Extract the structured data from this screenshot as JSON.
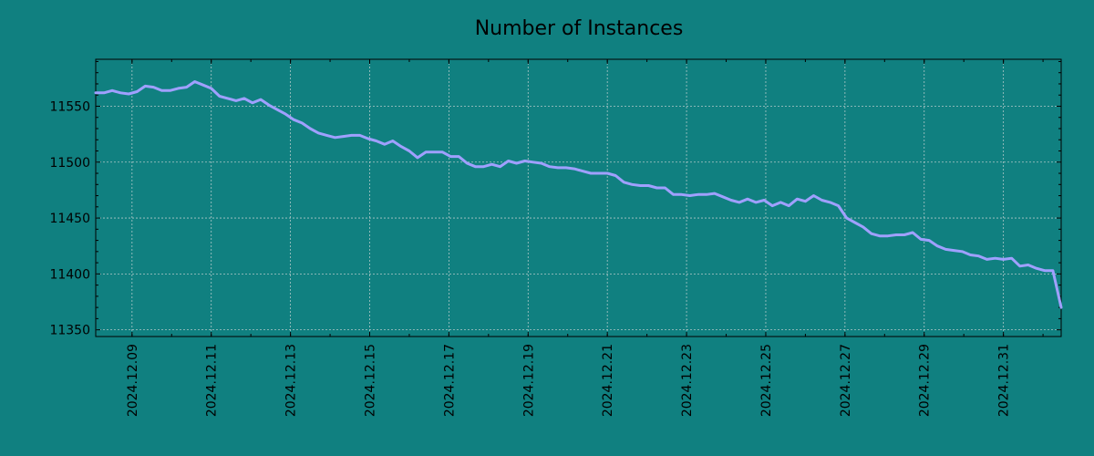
{
  "chart_data": {
    "type": "line",
    "title": "Number of Instances",
    "xlabel": "",
    "ylabel": "",
    "x_start": "2024.12.08",
    "x_end": "2025.01.01",
    "xlim": [
      "2024.12.08 02:00",
      "2025.01.01 11:00"
    ],
    "ylim": [
      11344,
      11592
    ],
    "grid": true,
    "x_ticks": [
      "2024.12.09",
      "2024.12.11",
      "2024.12.13",
      "2024.12.15",
      "2024.12.17",
      "2024.12.19",
      "2024.12.21",
      "2024.12.23",
      "2024.12.25",
      "2024.12.27",
      "2024.12.29",
      "2024.12.31"
    ],
    "y_ticks": [
      11350,
      11400,
      11450,
      11500,
      11550
    ],
    "series": [
      {
        "color": "#a0a0ff",
        "points": [
          [
            "2024.12.08 02:00",
            11562
          ],
          [
            "2024.12.08 07:00",
            11562
          ],
          [
            "2024.12.08 12:00",
            11564
          ],
          [
            "2024.12.08 17:00",
            11562
          ],
          [
            "2024.12.08 22:00",
            11561
          ],
          [
            "2024.12.09 03:00",
            11563
          ],
          [
            "2024.12.09 08:00",
            11568
          ],
          [
            "2024.12.09 13:00",
            11567
          ],
          [
            "2024.12.09 18:00",
            11564
          ],
          [
            "2024.12.09 23:00",
            11564
          ],
          [
            "2024.12.10 04:00",
            11566
          ],
          [
            "2024.12.10 09:00",
            11567
          ],
          [
            "2024.12.10 14:00",
            11572
          ],
          [
            "2024.12.10 19:00",
            11569
          ],
          [
            "2024.12.11 00:00",
            11566
          ],
          [
            "2024.12.11 05:00",
            11559
          ],
          [
            "2024.12.11 10:00",
            11557
          ],
          [
            "2024.12.11 15:00",
            11555
          ],
          [
            "2024.12.11 20:00",
            11557
          ],
          [
            "2024.12.12 01:00",
            11553
          ],
          [
            "2024.12.12 06:00",
            11556
          ],
          [
            "2024.12.12 11:00",
            11551
          ],
          [
            "2024.12.12 16:00",
            11547
          ],
          [
            "2024.12.12 21:00",
            11543
          ],
          [
            "2024.12.13 02:00",
            11538
          ],
          [
            "2024.12.13 07:00",
            11535
          ],
          [
            "2024.12.13 12:00",
            11530
          ],
          [
            "2024.12.13 17:00",
            11526
          ],
          [
            "2024.12.13 22:00",
            11524
          ],
          [
            "2024.12.14 03:00",
            11522
          ],
          [
            "2024.12.14 08:00",
            11523
          ],
          [
            "2024.12.14 13:00",
            11524
          ],
          [
            "2024.12.14 18:00",
            11524
          ],
          [
            "2024.12.14 23:00",
            11521
          ],
          [
            "2024.12.15 04:00",
            11519
          ],
          [
            "2024.12.15 09:00",
            11516
          ],
          [
            "2024.12.15 14:00",
            11519
          ],
          [
            "2024.12.15 19:00",
            11514
          ],
          [
            "2024.12.16 00:00",
            11510
          ],
          [
            "2024.12.16 05:00",
            11504
          ],
          [
            "2024.12.16 10:00",
            11509
          ],
          [
            "2024.12.16 15:00",
            11509
          ],
          [
            "2024.12.16 20:00",
            11509
          ],
          [
            "2024.12.17 01:00",
            11505
          ],
          [
            "2024.12.17 06:00",
            11505
          ],
          [
            "2024.12.17 11:00",
            11499
          ],
          [
            "2024.12.17 16:00",
            11496
          ],
          [
            "2024.12.17 21:00",
            11496
          ],
          [
            "2024.12.18 02:00",
            11498
          ],
          [
            "2024.12.18 07:00",
            11496
          ],
          [
            "2024.12.18 12:00",
            11501
          ],
          [
            "2024.12.18 17:00",
            11499
          ],
          [
            "2024.12.18 22:00",
            11501
          ],
          [
            "2024.12.19 03:00",
            11500
          ],
          [
            "2024.12.19 08:00",
            11499
          ],
          [
            "2024.12.19 13:00",
            11496
          ],
          [
            "2024.12.19 18:00",
            11495
          ],
          [
            "2024.12.19 23:00",
            11495
          ],
          [
            "2024.12.20 04:00",
            11494
          ],
          [
            "2024.12.20 09:00",
            11492
          ],
          [
            "2024.12.20 14:00",
            11490
          ],
          [
            "2024.12.20 19:00",
            11490
          ],
          [
            "2024.12.21 00:00",
            11490
          ],
          [
            "2024.12.21 05:00",
            11488
          ],
          [
            "2024.12.21 10:00",
            11482
          ],
          [
            "2024.12.21 15:00",
            11480
          ],
          [
            "2024.12.21 20:00",
            11479
          ],
          [
            "2024.12.22 01:00",
            11479
          ],
          [
            "2024.12.22 06:00",
            11477
          ],
          [
            "2024.12.22 11:00",
            11477
          ],
          [
            "2024.12.22 16:00",
            11471
          ],
          [
            "2024.12.22 21:00",
            11471
          ],
          [
            "2024.12.23 02:00",
            11470
          ],
          [
            "2024.12.23 07:00",
            11471
          ],
          [
            "2024.12.23 12:00",
            11471
          ],
          [
            "2024.12.23 17:00",
            11472
          ],
          [
            "2024.12.23 22:00",
            11469
          ],
          [
            "2024.12.24 03:00",
            11466
          ],
          [
            "2024.12.24 08:00",
            11464
          ],
          [
            "2024.12.24 13:00",
            11467
          ],
          [
            "2024.12.24 18:00",
            11464
          ],
          [
            "2024.12.24 23:00",
            11466
          ],
          [
            "2024.12.25 04:00",
            11461
          ],
          [
            "2024.12.25 09:00",
            11464
          ],
          [
            "2024.12.25 14:00",
            11461
          ],
          [
            "2024.12.25 19:00",
            11467
          ],
          [
            "2024.12.26 00:00",
            11465
          ],
          [
            "2024.12.26 05:00",
            11470
          ],
          [
            "2024.12.26 10:00",
            11466
          ],
          [
            "2024.12.26 15:00",
            11464
          ],
          [
            "2024.12.26 20:00",
            11461
          ],
          [
            "2024.12.27 01:00",
            11450
          ],
          [
            "2024.12.27 06:00",
            11446
          ],
          [
            "2024.12.27 11:00",
            11442
          ],
          [
            "2024.12.27 16:00",
            11436
          ],
          [
            "2024.12.27 21:00",
            11434
          ],
          [
            "2024.12.28 02:00",
            11434
          ],
          [
            "2024.12.28 07:00",
            11435
          ],
          [
            "2024.12.28 12:00",
            11435
          ],
          [
            "2024.12.28 17:00",
            11437
          ],
          [
            "2024.12.28 22:00",
            11431
          ],
          [
            "2024.12.29 03:00",
            11430
          ],
          [
            "2024.12.29 08:00",
            11425
          ],
          [
            "2024.12.29 13:00",
            11422
          ],
          [
            "2024.12.29 18:00",
            11421
          ],
          [
            "2024.12.29 23:00",
            11420
          ],
          [
            "2024.12.30 04:00",
            11417
          ],
          [
            "2024.12.30 09:00",
            11416
          ],
          [
            "2024.12.30 14:00",
            11413
          ],
          [
            "2024.12.30 19:00",
            11414
          ],
          [
            "2024.12.31 00:00",
            11413
          ],
          [
            "2024.12.31 05:00",
            11414
          ],
          [
            "2024.12.31 10:00",
            11407
          ],
          [
            "2024.12.31 15:00",
            11408
          ],
          [
            "2024.12.31 20:00",
            11405
          ],
          [
            "2025.01.01 01:00",
            11403
          ],
          [
            "2025.01.01 06:00",
            11403
          ],
          [
            "2025.01.01 11:00",
            11370
          ]
        ]
      }
    ]
  }
}
